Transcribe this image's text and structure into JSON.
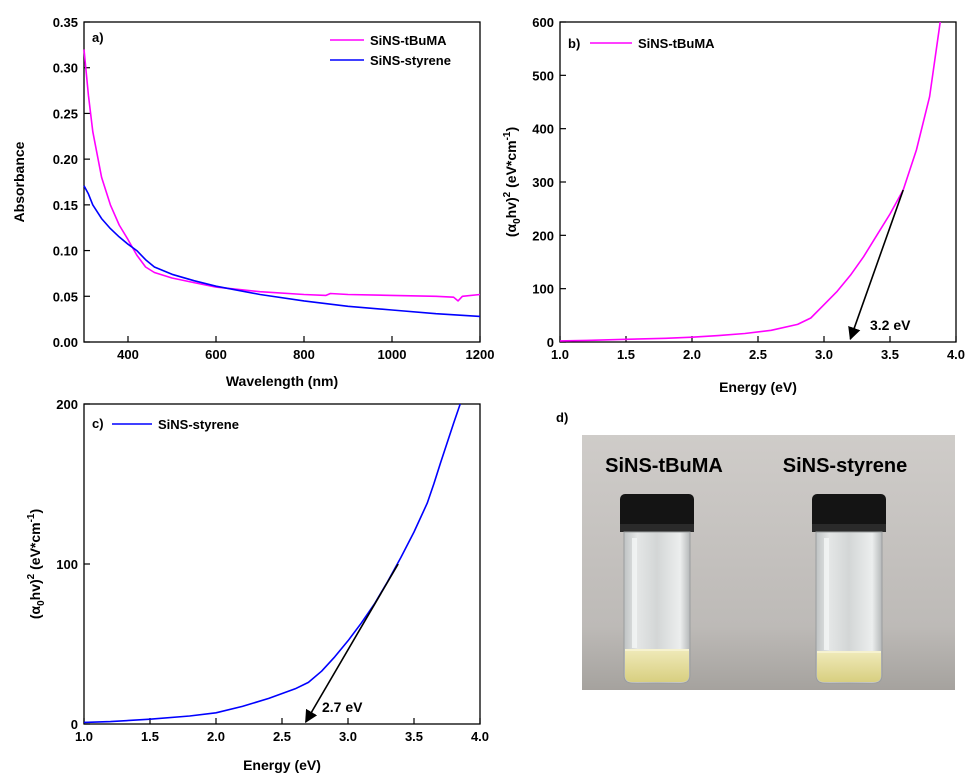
{
  "chart_data": [
    {
      "id": "a",
      "type": "line",
      "panel_label": "a)",
      "xlabel": "Wavelength (nm)",
      "ylabel": "Absorbance",
      "xlim": [
        300,
        1200
      ],
      "ylim": [
        0,
        0.35
      ],
      "xticks": [
        400,
        600,
        800,
        1000,
        1200
      ],
      "xtick_labels": [
        "400",
        "600",
        "800",
        "1000",
        "1200"
      ],
      "yticks": [
        0,
        0.05,
        0.1,
        0.15,
        0.2,
        0.25,
        0.3,
        0.35
      ],
      "ytick_labels": [
        "0.00",
        "0.05",
        "0.10",
        "0.15",
        "0.20",
        "0.25",
        "0.30",
        "0.35"
      ],
      "legend_position": "top-right",
      "series": [
        {
          "name": "SiNS-tBuMA",
          "color": "#ff00ff",
          "x": [
            300,
            310,
            320,
            340,
            360,
            380,
            400,
            420,
            440,
            460,
            500,
            550,
            600,
            700,
            800,
            850,
            860,
            900,
            1000,
            1100,
            1140,
            1150,
            1160,
            1200
          ],
          "y": [
            0.32,
            0.27,
            0.23,
            0.18,
            0.15,
            0.128,
            0.112,
            0.095,
            0.082,
            0.076,
            0.07,
            0.065,
            0.06,
            0.055,
            0.052,
            0.051,
            0.053,
            0.052,
            0.051,
            0.05,
            0.049,
            0.045,
            0.05,
            0.052
          ]
        },
        {
          "name": "SiNS-styrene",
          "color": "#0000ff",
          "x": [
            300,
            310,
            320,
            340,
            360,
            380,
            400,
            420,
            440,
            460,
            500,
            550,
            600,
            700,
            800,
            900,
            1000,
            1100,
            1200
          ],
          "y": [
            0.171,
            0.162,
            0.15,
            0.135,
            0.124,
            0.115,
            0.107,
            0.1,
            0.09,
            0.082,
            0.074,
            0.067,
            0.061,
            0.052,
            0.045,
            0.039,
            0.035,
            0.031,
            0.028
          ]
        }
      ]
    },
    {
      "id": "b",
      "type": "line",
      "panel_label": "b)",
      "xlabel": "Energy (eV)",
      "ylabel_main": "(α",
      "ylabel_sub": "0",
      "ylabel_mid": "hv)",
      "ylabel_sup": "2",
      "ylabel_unit": " (eV*cm",
      "ylabel_unit_sup": "-1",
      "ylabel_close": ")",
      "xlim": [
        1.0,
        4.0
      ],
      "ylim": [
        0,
        600
      ],
      "xticks": [
        1.0,
        1.5,
        2.0,
        2.5,
        3.0,
        3.5,
        4.0
      ],
      "xtick_labels": [
        "1.0",
        "1.5",
        "2.0",
        "2.5",
        "3.0",
        "3.5",
        "4.0"
      ],
      "yticks": [
        0,
        100,
        200,
        300,
        400,
        500,
        600
      ],
      "ytick_labels": [
        "0",
        "100",
        "200",
        "300",
        "400",
        "500",
        "600"
      ],
      "legend_position": "top-left",
      "series": [
        {
          "name": "SiNS-tBuMA",
          "color": "#ff00ff",
          "x": [
            1.0,
            1.2,
            1.5,
            1.8,
            2.0,
            2.2,
            2.4,
            2.6,
            2.8,
            2.9,
            3.0,
            3.1,
            3.2,
            3.3,
            3.4,
            3.5,
            3.6,
            3.7,
            3.8,
            3.88
          ],
          "y": [
            2,
            3,
            5,
            7,
            9,
            12,
            16,
            22,
            33,
            45,
            70,
            95,
            125,
            160,
            200,
            240,
            285,
            360,
            460,
            600
          ]
        }
      ],
      "tangent": {
        "x1": 3.6,
        "y1": 285,
        "x2": 3.2,
        "y2": 2
      },
      "annotation": {
        "text": "3.2 eV",
        "x": 3.28,
        "y": 35
      }
    },
    {
      "id": "c",
      "type": "line",
      "panel_label": "c)",
      "xlabel": "Energy (eV)",
      "ylabel_main": "(α",
      "ylabel_sub": "0",
      "ylabel_mid": "hv)",
      "ylabel_sup": "2",
      "ylabel_unit": " (eV*cm",
      "ylabel_unit_sup": "-1",
      "ylabel_close": ")",
      "xlim": [
        1.0,
        4.0
      ],
      "ylim": [
        0,
        200
      ],
      "xticks": [
        1.0,
        1.5,
        2.0,
        2.5,
        3.0,
        3.5,
        4.0
      ],
      "xtick_labels": [
        "1.0",
        "1.5",
        "2.0",
        "2.5",
        "3.0",
        "3.5",
        "4.0"
      ],
      "yticks": [
        0,
        100,
        200
      ],
      "ytick_labels": [
        "0",
        "100",
        "200"
      ],
      "legend_position": "top-left",
      "series": [
        {
          "name": "SiNS-styrene",
          "color": "#0000ff",
          "x": [
            1.0,
            1.2,
            1.5,
            1.8,
            2.0,
            2.2,
            2.4,
            2.6,
            2.7,
            2.8,
            2.9,
            3.0,
            3.1,
            3.2,
            3.3,
            3.4,
            3.5,
            3.6,
            3.65,
            3.7,
            3.8,
            3.85
          ],
          "y": [
            1,
            1.5,
            3,
            5,
            7,
            11,
            16,
            22,
            26,
            33,
            42,
            52,
            63,
            75,
            89,
            104,
            120,
            138,
            150,
            163,
            188,
            200
          ]
        }
      ],
      "tangent": {
        "x1": 3.38,
        "y1": 100,
        "x2": 2.68,
        "y2": 0
      },
      "annotation": {
        "text": "2.7 eV",
        "x": 2.78,
        "y": 28
      }
    }
  ],
  "photo": {
    "panel_label": "d)",
    "left_label": "SiNS-tBuMA",
    "right_label": "SiNS-styrene",
    "background_color": "#c8c5c2",
    "cap_color": "#141414",
    "liquid_color": "#e4dc9a"
  }
}
